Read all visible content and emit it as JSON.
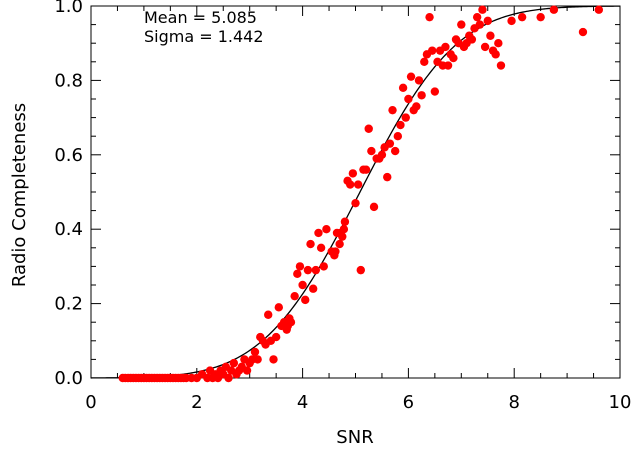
{
  "chart_data": {
    "type": "scatter",
    "xlabel": "SNR",
    "ylabel": "Radio Completeness",
    "xlim": [
      0,
      10
    ],
    "ylim": [
      0,
      1
    ],
    "x_ticks": [
      0,
      2,
      4,
      6,
      8,
      10
    ],
    "x_tick_labels": [
      "0",
      "2",
      "4",
      "6",
      "8",
      "10"
    ],
    "y_ticks": [
      0,
      0.2,
      0.4,
      0.6,
      0.8,
      1.0
    ],
    "y_tick_labels": [
      "0.0",
      "0.2",
      "0.4",
      "0.6",
      "0.8",
      "1.0"
    ],
    "annotations": [
      "Mean = 5.085",
      "Sigma = 1.442"
    ],
    "fit": {
      "type": "gaussian-cdf",
      "mean": 5.085,
      "sigma": 1.442,
      "color": "#000000"
    },
    "points_color": "#ff0000",
    "series": [
      {
        "points": [
          [
            0.6,
            0.0
          ],
          [
            0.65,
            0.0
          ],
          [
            0.7,
            0.0
          ],
          [
            0.75,
            0.0
          ],
          [
            0.8,
            0.0
          ],
          [
            0.85,
            0.0
          ],
          [
            0.9,
            0.0
          ],
          [
            0.95,
            0.0
          ],
          [
            1.0,
            0.0
          ],
          [
            1.05,
            0.0
          ],
          [
            1.1,
            0.0
          ],
          [
            1.15,
            0.0
          ],
          [
            1.2,
            0.0
          ],
          [
            1.25,
            0.0
          ],
          [
            1.3,
            0.0
          ],
          [
            1.35,
            0.0
          ],
          [
            1.4,
            0.0
          ],
          [
            1.45,
            0.0
          ],
          [
            1.5,
            0.0
          ],
          [
            1.55,
            0.0
          ],
          [
            1.6,
            0.0
          ],
          [
            1.65,
            0.0
          ],
          [
            1.7,
            0.0
          ],
          [
            1.75,
            0.0
          ],
          [
            1.8,
            0.0
          ],
          [
            1.9,
            0.0
          ],
          [
            2.0,
            0.0
          ],
          [
            2.1,
            0.01
          ],
          [
            2.2,
            0.0
          ],
          [
            2.25,
            0.02
          ],
          [
            2.3,
            0.0
          ],
          [
            2.35,
            0.01
          ],
          [
            2.4,
            0.0
          ],
          [
            2.45,
            0.02
          ],
          [
            2.5,
            0.01
          ],
          [
            2.55,
            0.03
          ],
          [
            2.6,
            0.0
          ],
          [
            2.65,
            0.02
          ],
          [
            2.7,
            0.04
          ],
          [
            2.75,
            0.01
          ],
          [
            2.8,
            0.02
          ],
          [
            2.85,
            0.03
          ],
          [
            2.9,
            0.05
          ],
          [
            2.95,
            0.02
          ],
          [
            3.0,
            0.04
          ],
          [
            3.05,
            0.05
          ],
          [
            3.1,
            0.07
          ],
          [
            3.15,
            0.05
          ],
          [
            3.2,
            0.11
          ],
          [
            3.25,
            0.1
          ],
          [
            3.3,
            0.09
          ],
          [
            3.35,
            0.17
          ],
          [
            3.4,
            0.1
          ],
          [
            3.45,
            0.05
          ],
          [
            3.5,
            0.11
          ],
          [
            3.55,
            0.19
          ],
          [
            3.6,
            0.14
          ],
          [
            3.65,
            0.15
          ],
          [
            3.7,
            0.13
          ],
          [
            3.72,
            0.14
          ],
          [
            3.75,
            0.16
          ],
          [
            3.78,
            0.15
          ],
          [
            3.85,
            0.22
          ],
          [
            3.9,
            0.28
          ],
          [
            3.95,
            0.3
          ],
          [
            4.0,
            0.25
          ],
          [
            4.05,
            0.21
          ],
          [
            4.1,
            0.29
          ],
          [
            4.15,
            0.36
          ],
          [
            4.2,
            0.24
          ],
          [
            4.25,
            0.29
          ],
          [
            4.3,
            0.39
          ],
          [
            4.35,
            0.35
          ],
          [
            4.4,
            0.3
          ],
          [
            4.45,
            0.4
          ],
          [
            4.55,
            0.34
          ],
          [
            4.6,
            0.33
          ],
          [
            4.62,
            0.34
          ],
          [
            4.65,
            0.39
          ],
          [
            4.7,
            0.36
          ],
          [
            4.72,
            0.39
          ],
          [
            4.75,
            0.38
          ],
          [
            4.78,
            0.4
          ],
          [
            4.8,
            0.42
          ],
          [
            4.85,
            0.53
          ],
          [
            4.9,
            0.52
          ],
          [
            4.95,
            0.55
          ],
          [
            5.0,
            0.47
          ],
          [
            5.05,
            0.52
          ],
          [
            5.1,
            0.29
          ],
          [
            5.15,
            0.56
          ],
          [
            5.2,
            0.56
          ],
          [
            5.25,
            0.67
          ],
          [
            5.3,
            0.61
          ],
          [
            5.35,
            0.46
          ],
          [
            5.4,
            0.59
          ],
          [
            5.45,
            0.59
          ],
          [
            5.5,
            0.6
          ],
          [
            5.55,
            0.62
          ],
          [
            5.6,
            0.54
          ],
          [
            5.65,
            0.63
          ],
          [
            5.7,
            0.72
          ],
          [
            5.75,
            0.61
          ],
          [
            5.8,
            0.65
          ],
          [
            5.85,
            0.68
          ],
          [
            5.9,
            0.78
          ],
          [
            5.95,
            0.7
          ],
          [
            6.0,
            0.75
          ],
          [
            6.05,
            0.81
          ],
          [
            6.1,
            0.72
          ],
          [
            6.15,
            0.73
          ],
          [
            6.2,
            0.8
          ],
          [
            6.25,
            0.76
          ],
          [
            6.3,
            0.85
          ],
          [
            6.35,
            0.87
          ],
          [
            6.4,
            0.97
          ],
          [
            6.45,
            0.88
          ],
          [
            6.5,
            0.77
          ],
          [
            6.55,
            0.85
          ],
          [
            6.6,
            0.88
          ],
          [
            6.65,
            0.84
          ],
          [
            6.7,
            0.89
          ],
          [
            6.75,
            0.84
          ],
          [
            6.8,
            0.87
          ],
          [
            6.85,
            0.86
          ],
          [
            6.9,
            0.91
          ],
          [
            6.95,
            0.9
          ],
          [
            7.0,
            0.95
          ],
          [
            7.05,
            0.89
          ],
          [
            7.1,
            0.9
          ],
          [
            7.15,
            0.92
          ],
          [
            7.2,
            0.91
          ],
          [
            7.25,
            0.94
          ],
          [
            7.3,
            0.97
          ],
          [
            7.35,
            0.95
          ],
          [
            7.4,
            0.99
          ],
          [
            7.45,
            0.89
          ],
          [
            7.5,
            0.96
          ],
          [
            7.55,
            0.92
          ],
          [
            7.6,
            0.88
          ],
          [
            7.65,
            0.87
          ],
          [
            7.7,
            0.9
          ],
          [
            7.75,
            0.84
          ],
          [
            7.95,
            0.96
          ],
          [
            8.15,
            0.97
          ],
          [
            8.5,
            0.97
          ],
          [
            8.75,
            0.99
          ],
          [
            9.3,
            0.93
          ],
          [
            9.6,
            0.99
          ]
        ]
      }
    ]
  }
}
